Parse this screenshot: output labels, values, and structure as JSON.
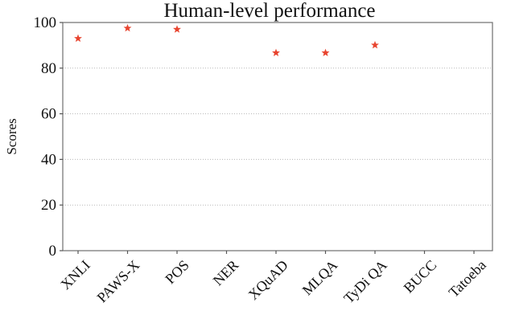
{
  "figure": {
    "title": "Human-level performance"
  },
  "chart_data": {
    "type": "scatter",
    "title": "Human-level performance",
    "xlabel": "",
    "ylabel": "Scores",
    "categories": [
      "XNLI",
      "PAWS-X",
      "POS",
      "NER",
      "XQuAD",
      "MLQA",
      "TyDi QA",
      "BUCC",
      "Tatoeba"
    ],
    "series": [
      {
        "name": "Human-level performance",
        "marker": "star",
        "color": "#e8442f",
        "values": [
          93.0,
          97.5,
          97.0,
          null,
          86.7,
          86.7,
          90.1,
          null,
          null
        ]
      }
    ],
    "ylim": [
      0,
      100
    ],
    "yticks": [
      0,
      20,
      40,
      60,
      80,
      100
    ],
    "grid": {
      "axis": "y",
      "style": "dotted",
      "color": "#b8b8b8"
    },
    "legend": "none",
    "x_tick_rotation": 45
  },
  "style": {
    "background": "#ffffff",
    "spine_color": "#6e6e6e",
    "tick_color": "#555555",
    "text_color": "#111111"
  }
}
